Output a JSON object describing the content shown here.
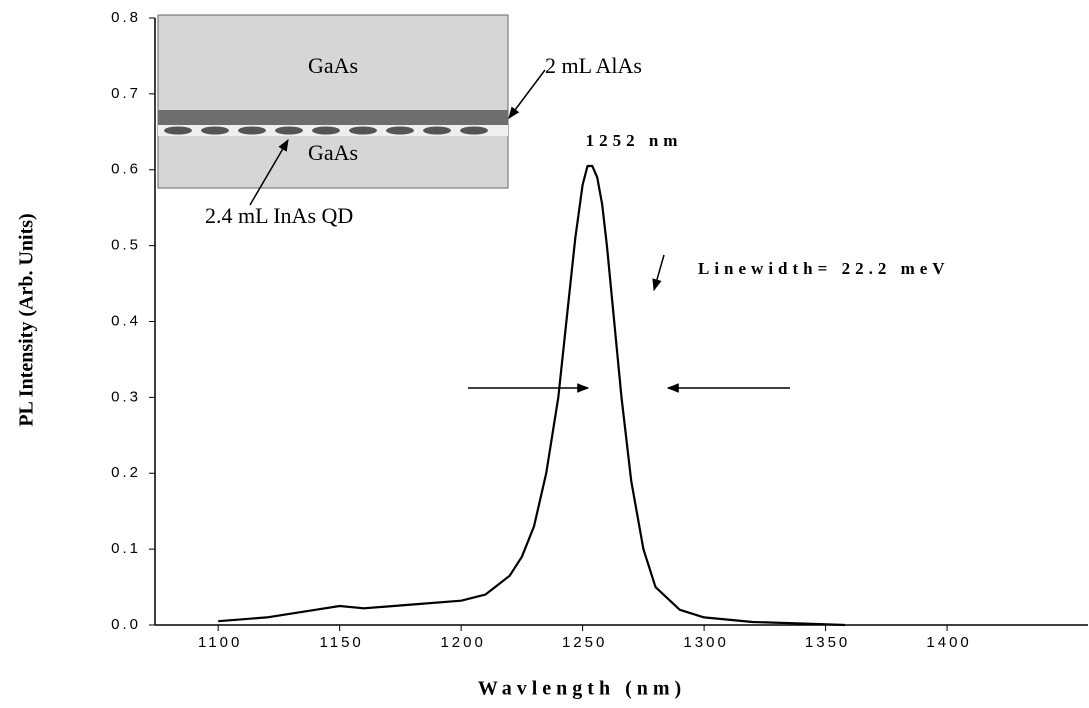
{
  "chart_data": {
    "type": "line",
    "xlabel": "Wavlength (nm)",
    "ylabel": "PL Intensity (Arb. Units)",
    "x": [
      1100,
      1120,
      1140,
      1150,
      1160,
      1180,
      1200,
      1210,
      1220,
      1225,
      1230,
      1235,
      1240,
      1244,
      1247,
      1250,
      1252,
      1254,
      1256,
      1258,
      1260,
      1263,
      1266,
      1270,
      1275,
      1280,
      1290,
      1300,
      1320,
      1340,
      1358
    ],
    "series": [
      {
        "color": "#000000",
        "values": [
          0.005,
          0.01,
          0.02,
          0.025,
          0.022,
          0.027,
          0.032,
          0.04,
          0.065,
          0.09,
          0.13,
          0.2,
          0.3,
          0.42,
          0.51,
          0.58,
          0.605,
          0.605,
          0.59,
          0.555,
          0.5,
          0.4,
          0.3,
          0.19,
          0.1,
          0.05,
          0.02,
          0.01,
          0.004,
          0.002,
          0.0
        ]
      }
    ],
    "xlim": [
      1074,
      1458
    ],
    "ylim": [
      0,
      0.8
    ],
    "xticks": [
      1100,
      1150,
      1200,
      1250,
      1300,
      1350,
      1400
    ],
    "yticks": [
      {
        "value": 0,
        "label": "0.0"
      },
      0.1,
      0.2,
      0.3,
      0.4,
      0.5,
      0.6,
      0.7,
      0.8
    ],
    "annotations": [
      "1252 nm",
      "Linewidth= 22.2 meV"
    ],
    "inset": {
      "labels": [
        "GaAs",
        "2 mL AlAs",
        "GaAs",
        "2.4 mL InAs QD"
      ]
    }
  }
}
